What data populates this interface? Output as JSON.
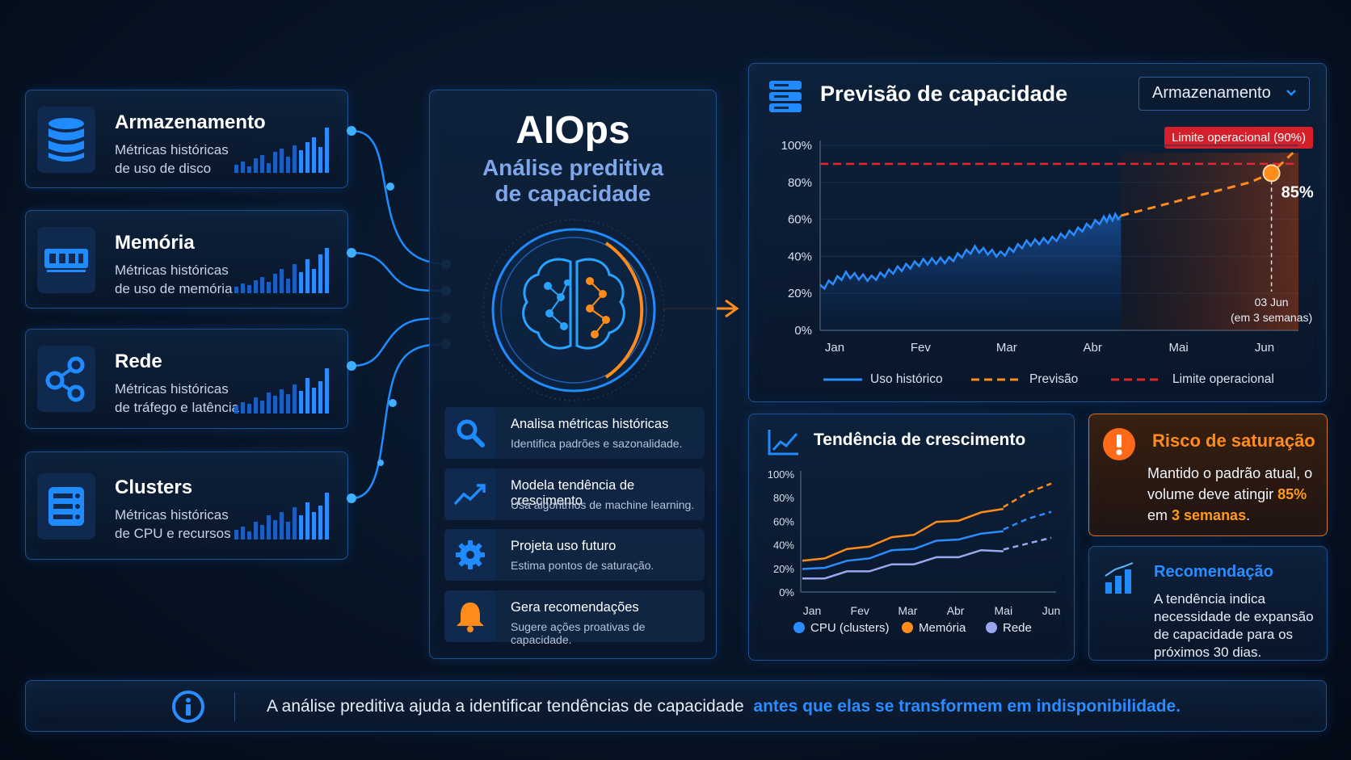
{
  "sources": [
    {
      "icon": "database-icon",
      "title": "Armazenamento",
      "desc_line1": "Métricas históricas",
      "desc_line2": "de uso de disco"
    },
    {
      "icon": "memory-icon",
      "title": "Memória",
      "desc_line1": "Métricas históricas",
      "desc_line2": "de uso de memória"
    },
    {
      "icon": "network-share-icon",
      "title": "Rede",
      "desc_line1": "Métricas históricas",
      "desc_line2": "de tráfego e latência"
    },
    {
      "icon": "server-icon",
      "title": "Clusters",
      "desc_line1": "Métricas históricas",
      "desc_line2": "de CPU e recursos"
    }
  ],
  "aiops": {
    "title": "AIOps",
    "subtitle_line1": "Análise preditiva",
    "subtitle_line2": "de capacidade",
    "steps": [
      {
        "icon": "search-icon",
        "title": "Analisa métricas históricas",
        "desc": "Identifica padrões e sazonalidade."
      },
      {
        "icon": "trend-icon",
        "title": "Modela tendência de crescimento",
        "desc": "Usa algoritmos de machine learning."
      },
      {
        "icon": "gear-icon",
        "title": "Projeta uso futuro",
        "desc": "Estima pontos de saturação."
      },
      {
        "icon": "bell-icon",
        "title": "Gera recomendações",
        "desc": "Sugere ações proativas de capacidade."
      }
    ]
  },
  "forecast": {
    "title": "Previsão de capacidade",
    "selected_resource": "Armazenamento",
    "limit_badge": "Limite operacional (90%)",
    "point_label": "85%",
    "date_label": "03 Jun",
    "date_sub": "(em 3 semanas)",
    "legend": {
      "historic": "Uso histórico",
      "forecast": "Previsão",
      "limit": "Limite operacional"
    }
  },
  "growth": {
    "title": "Tendência de crescimento"
  },
  "risk": {
    "title": "Risco de saturação",
    "text_a": "Mantido o padrão atual, o volume deve atingir ",
    "value": "85%",
    "text_b": " em ",
    "time": "3 semanas",
    "text_c": "."
  },
  "recommendation": {
    "title": "Recomendação",
    "text": "A tendência indica necessidade de expansão de capacidade para os próximos 30 dias."
  },
  "footer": {
    "text": "A análise preditiva ajuda a identificar tendências de capacidade",
    "highlight": "antes que elas se transformem em indisponibilidade."
  },
  "colors": {
    "accent_blue": "#2a8cff",
    "accent_orange": "#ff8c1a",
    "limit_red": "#e5252f",
    "lavender": "#9aa6f0"
  },
  "chart_data": [
    {
      "type": "area",
      "title": "Previsão de capacidade",
      "categories": [
        "Jan",
        "Fev",
        "Mar",
        "Abr",
        "Mai",
        "Jun"
      ],
      "yticks": [
        "0%",
        "20%",
        "40%",
        "60%",
        "80%",
        "100%"
      ],
      "ylim": [
        0,
        100
      ],
      "series": [
        {
          "name": "Uso histórico",
          "x": [
            0,
            0.3,
            0.6,
            0.9,
            1.2,
            1.5,
            1.8,
            2.1,
            2.4,
            2.7,
            3.0,
            3.3,
            3.5
          ],
          "values": [
            23,
            30,
            28,
            33,
            37,
            38,
            44,
            41,
            47,
            49,
            54,
            60,
            62
          ]
        },
        {
          "name": "Previsão",
          "x": [
            3.5,
            4.0,
            4.5,
            5.0,
            5.25,
            5.5
          ],
          "values": [
            62,
            68,
            74,
            80,
            85,
            96
          ]
        },
        {
          "name": "Limite operacional",
          "x": [
            0,
            5.5
          ],
          "values": [
            90,
            90
          ]
        }
      ],
      "marker": {
        "x": 5.25,
        "value": 85
      },
      "grid": true,
      "legend": "bottom"
    },
    {
      "type": "line",
      "title": "Tendência de crescimento",
      "categories": [
        "Jan",
        "Fev",
        "Mar",
        "Abr",
        "Mai",
        "Jun"
      ],
      "yticks": [
        "0%",
        "20%",
        "40%",
        "60%",
        "80%",
        "100%"
      ],
      "ylim": [
        0,
        100
      ],
      "series": [
        {
          "name": "CPU (clusters)",
          "history": [
            18,
            22,
            25,
            30,
            34,
            38,
            42,
            46,
            48,
            53
          ],
          "forecast": [
            53,
            62,
            68
          ]
        },
        {
          "name": "Memória",
          "history": [
            25,
            30,
            35,
            40,
            45,
            50,
            58,
            62,
            66,
            72
          ],
          "forecast": [
            72,
            84,
            92
          ]
        },
        {
          "name": "Rede",
          "history": [
            10,
            13,
            16,
            19,
            22,
            25,
            28,
            31,
            34,
            36
          ],
          "forecast": [
            36,
            41,
            46
          ]
        }
      ],
      "legend": "bottom"
    }
  ]
}
